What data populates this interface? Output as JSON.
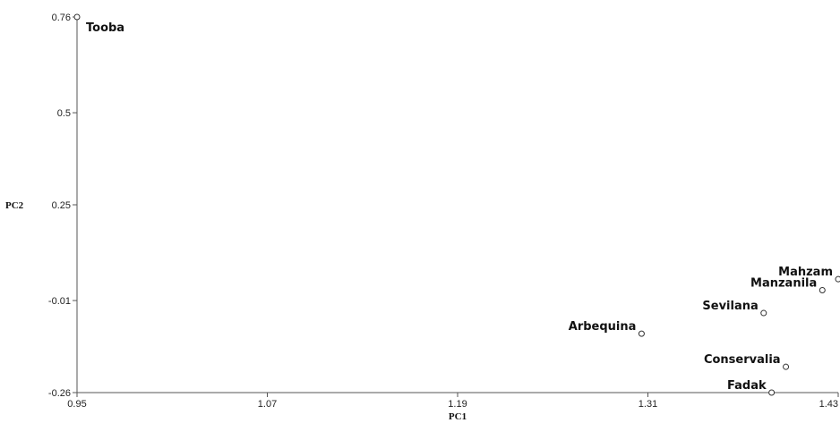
{
  "chart_data": {
    "type": "scatter",
    "title": "",
    "xlabel": "PC1",
    "ylabel": "PC2",
    "xlim": [
      0.95,
      1.43
    ],
    "ylim": [
      -0.26,
      0.76
    ],
    "x_ticks": [
      {
        "value": 0.95,
        "label": "0.95"
      },
      {
        "value": 1.07,
        "label": "1.07"
      },
      {
        "value": 1.19,
        "label": "1.19"
      },
      {
        "value": 1.31,
        "label": "1.31"
      },
      {
        "value": 1.43,
        "label": "1.43"
      }
    ],
    "y_ticks": [
      {
        "value": 0.76,
        "label": "0.76"
      },
      {
        "value": 0.5,
        "label": "0.5"
      },
      {
        "value": 0.25,
        "label": "0.25"
      },
      {
        "value": -0.01,
        "label": "-0.01"
      },
      {
        "value": -0.26,
        "label": "-0.26"
      }
    ],
    "grid": false,
    "colors": {
      "axis": "#555555",
      "marker": "#333333",
      "text": "#111111"
    },
    "points": [
      {
        "name": "Tooba",
        "x": 0.95,
        "y": 0.76
      },
      {
        "name": "Mahzam",
        "x": 1.43,
        "y": 0.048
      },
      {
        "name": "Manzanila",
        "x": 1.42,
        "y": 0.018
      },
      {
        "name": "Sevilana",
        "x": 1.383,
        "y": -0.044
      },
      {
        "name": "Arbequina",
        "x": 1.306,
        "y": -0.1
      },
      {
        "name": "Conservalia",
        "x": 1.397,
        "y": -0.19
      },
      {
        "name": "Fadak",
        "x": 1.388,
        "y": -0.26
      }
    ]
  }
}
